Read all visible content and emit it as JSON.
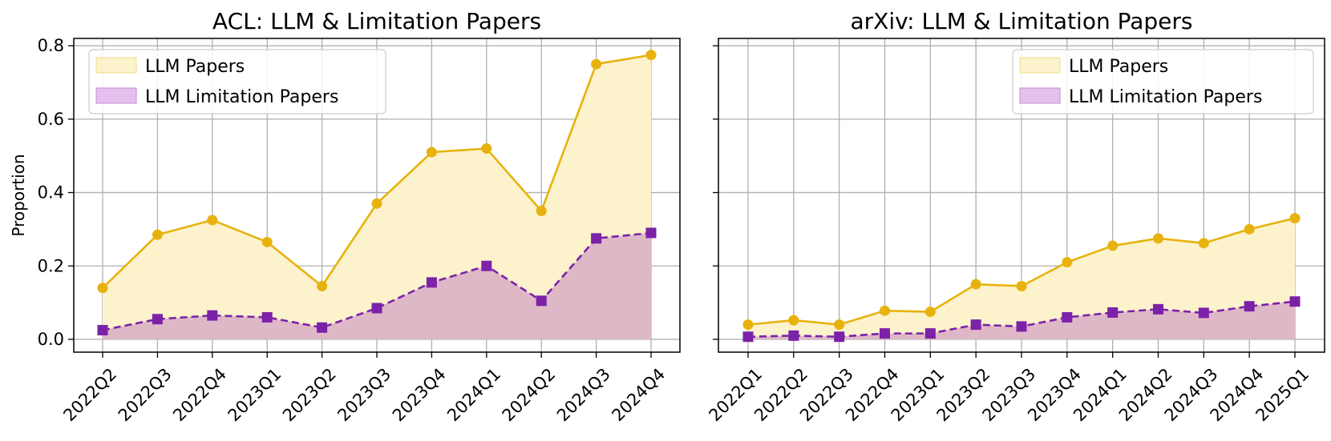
{
  "figure": {
    "ylabel": "Proportion"
  },
  "legend_labels": {
    "llm": "LLM Papers",
    "limitation": "LLM Limitation Papers"
  },
  "colors": {
    "llm_line": "#E8B20E",
    "llm_fill": "#FCF2CC",
    "limitation_line": "#7B22A8",
    "limitation_fill": "#DFB8C7",
    "grid": "#B0B0B0"
  },
  "chart_data": [
    {
      "type": "area",
      "title": "ACL: LLM & Limitation Papers",
      "xlabel": "",
      "ylabel": "Proportion",
      "ylim": [
        -0.035,
        0.82
      ],
      "yticks": [
        "0.0",
        "0.2",
        "0.4",
        "0.6",
        "0.8"
      ],
      "grid": true,
      "legend_position": "top-left",
      "categories": [
        "2022Q2",
        "2022Q3",
        "2022Q4",
        "2023Q1",
        "2023Q2",
        "2023Q3",
        "2023Q4",
        "2024Q1",
        "2024Q2",
        "2024Q3",
        "2024Q4"
      ],
      "series": [
        {
          "name": "LLM Papers",
          "values": [
            0.14,
            0.285,
            0.325,
            0.265,
            0.145,
            0.37,
            0.51,
            0.52,
            0.35,
            0.75,
            0.775
          ]
        },
        {
          "name": "LLM Limitation Papers",
          "values": [
            0.025,
            0.055,
            0.065,
            0.06,
            0.032,
            0.085,
            0.155,
            0.2,
            0.105,
            0.275,
            0.29
          ]
        }
      ]
    },
    {
      "type": "area",
      "title": "arXiv: LLM & Limitation Papers",
      "xlabel": "",
      "ylabel": "",
      "ylim": [
        -0.035,
        0.82
      ],
      "grid": true,
      "legend_position": "top-right",
      "categories": [
        "2022Q1",
        "2022Q2",
        "2022Q3",
        "2022Q4",
        "2023Q1",
        "2023Q2",
        "2023Q3",
        "2023Q4",
        "2024Q1",
        "2024Q2",
        "2024Q3",
        "2024Q4",
        "2025Q1"
      ],
      "series": [
        {
          "name": "LLM Papers",
          "values": [
            0.04,
            0.052,
            0.04,
            0.078,
            0.075,
            0.15,
            0.145,
            0.21,
            0.255,
            0.275,
            0.262,
            0.3,
            0.33
          ]
        },
        {
          "name": "LLM Limitation Papers",
          "values": [
            0.007,
            0.01,
            0.007,
            0.016,
            0.016,
            0.04,
            0.035,
            0.06,
            0.073,
            0.082,
            0.072,
            0.09,
            0.103
          ]
        }
      ]
    }
  ]
}
